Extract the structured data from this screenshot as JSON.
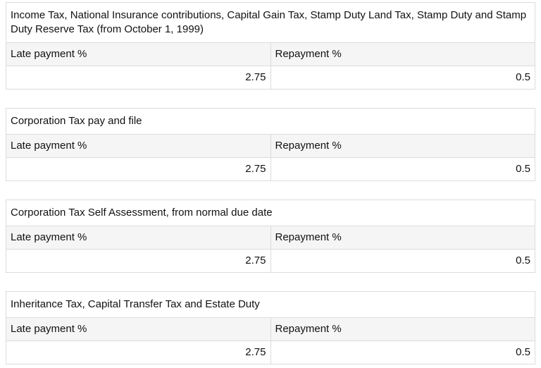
{
  "colors": {
    "page_background": "#ffffff",
    "header_row_background": "#f5f5f5",
    "table_border": "#dcdcdc",
    "text": "#111111"
  },
  "tables": [
    {
      "caption": "Income Tax, National Insurance contributions, Capital Gain Tax, Stamp Duty Land Tax, Stamp Duty and Stamp Duty Reserve Tax (from October 1, 1999)",
      "columns": [
        "Late payment %",
        "Repayment %"
      ],
      "values": [
        "2.75",
        "0.5"
      ]
    },
    {
      "caption": "Corporation Tax pay and file",
      "columns": [
        "Late payment %",
        "Repayment %"
      ],
      "values": [
        "2.75",
        "0.5"
      ]
    },
    {
      "caption": "Corporation Tax Self Assessment, from normal due date",
      "columns": [
        "Late payment %",
        "Repayment %"
      ],
      "values": [
        "2.75",
        "0.5"
      ]
    },
    {
      "caption": "Inheritance Tax, Capital Transfer Tax and Estate Duty",
      "columns": [
        "Late payment %",
        "Repayment %"
      ],
      "values": [
        "2.75",
        "0.5"
      ]
    }
  ]
}
